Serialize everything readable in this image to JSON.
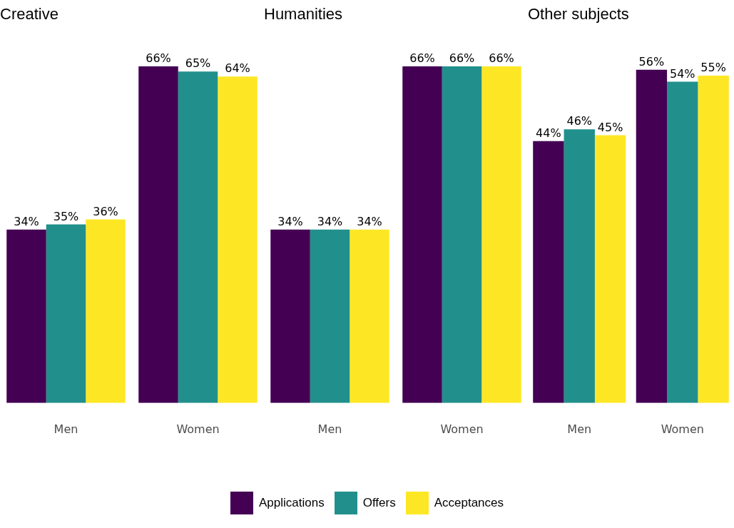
{
  "chart_data": [
    {
      "type": "bar",
      "title": "Creative",
      "categories": [
        "Men",
        "Women"
      ],
      "tick_labels": "x",
      "legend": "bottom",
      "series": [
        {
          "name": "Applications",
          "color": "#440154",
          "values": [
            34,
            66
          ],
          "value_labels": [
            "34%",
            "66%"
          ]
        },
        {
          "name": "Offers",
          "color": "#21908c",
          "values": [
            35,
            65
          ],
          "value_labels": [
            "35%",
            "65%"
          ]
        },
        {
          "name": "Acceptances",
          "color": "#fde725",
          "values": [
            36,
            64
          ],
          "value_labels": [
            "36%",
            "64%"
          ]
        }
      ]
    },
    {
      "type": "bar",
      "title": "Humanities",
      "categories": [
        "Men",
        "Women"
      ],
      "tick_labels": "x",
      "series": [
        {
          "color": "#440154",
          "values": [
            34,
            66
          ],
          "value_labels": [
            "34%",
            "66%"
          ]
        },
        {
          "color": "#21908c",
          "values": [
            34,
            66
          ],
          "value_labels": [
            "34%",
            "66%"
          ]
        },
        {
          "color": "#fde725",
          "values": [
            34,
            66
          ],
          "value_labels": [
            "34%",
            "66%"
          ]
        }
      ]
    },
    {
      "type": "bar",
      "title": "Other subjects",
      "categories": [
        "Men",
        "Women"
      ],
      "tick_labels": "x",
      "series": [
        {
          "color": "#440154",
          "values": [
            44,
            56
          ],
          "value_labels": [
            "44%",
            "56%"
          ]
        },
        {
          "color": "#21908c",
          "values": [
            46,
            54
          ],
          "value_labels": [
            "46%",
            "54%"
          ]
        },
        {
          "color": "#fde725",
          "values": [
            45,
            55
          ],
          "value_labels": [
            "45%",
            "55%"
          ]
        }
      ]
    }
  ]
}
